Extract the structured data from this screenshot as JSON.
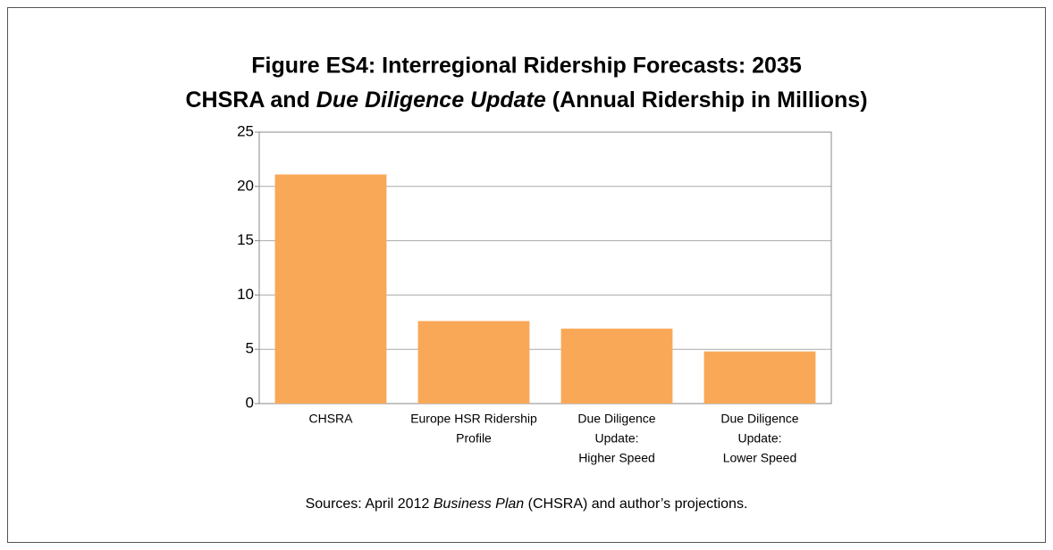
{
  "chart_data": {
    "type": "bar",
    "title": "Figure ES4: Interregional Ridership Forecasts: 2035",
    "subtitle": [
      "CHSRA and ",
      "Due Diligence Update",
      " (Annual Ridership in Millions)"
    ],
    "categories": [
      [
        "CHSRA"
      ],
      [
        "Europe HSR Ridership",
        "Profile"
      ],
      [
        "Due Diligence",
        "Update:",
        "Higher Speed"
      ],
      [
        "Due Diligence",
        "Update:",
        "Lower Speed"
      ]
    ],
    "values": [
      21.1,
      7.6,
      6.9,
      4.8
    ],
    "color": "#f9a857",
    "ylim": [
      0,
      25
    ],
    "yticks": [
      0,
      5,
      10,
      15,
      20,
      25
    ],
    "grid": true,
    "source": [
      "Sources: April 2012 ",
      "Business Plan",
      " (CHSRA) and author’s projections."
    ]
  }
}
